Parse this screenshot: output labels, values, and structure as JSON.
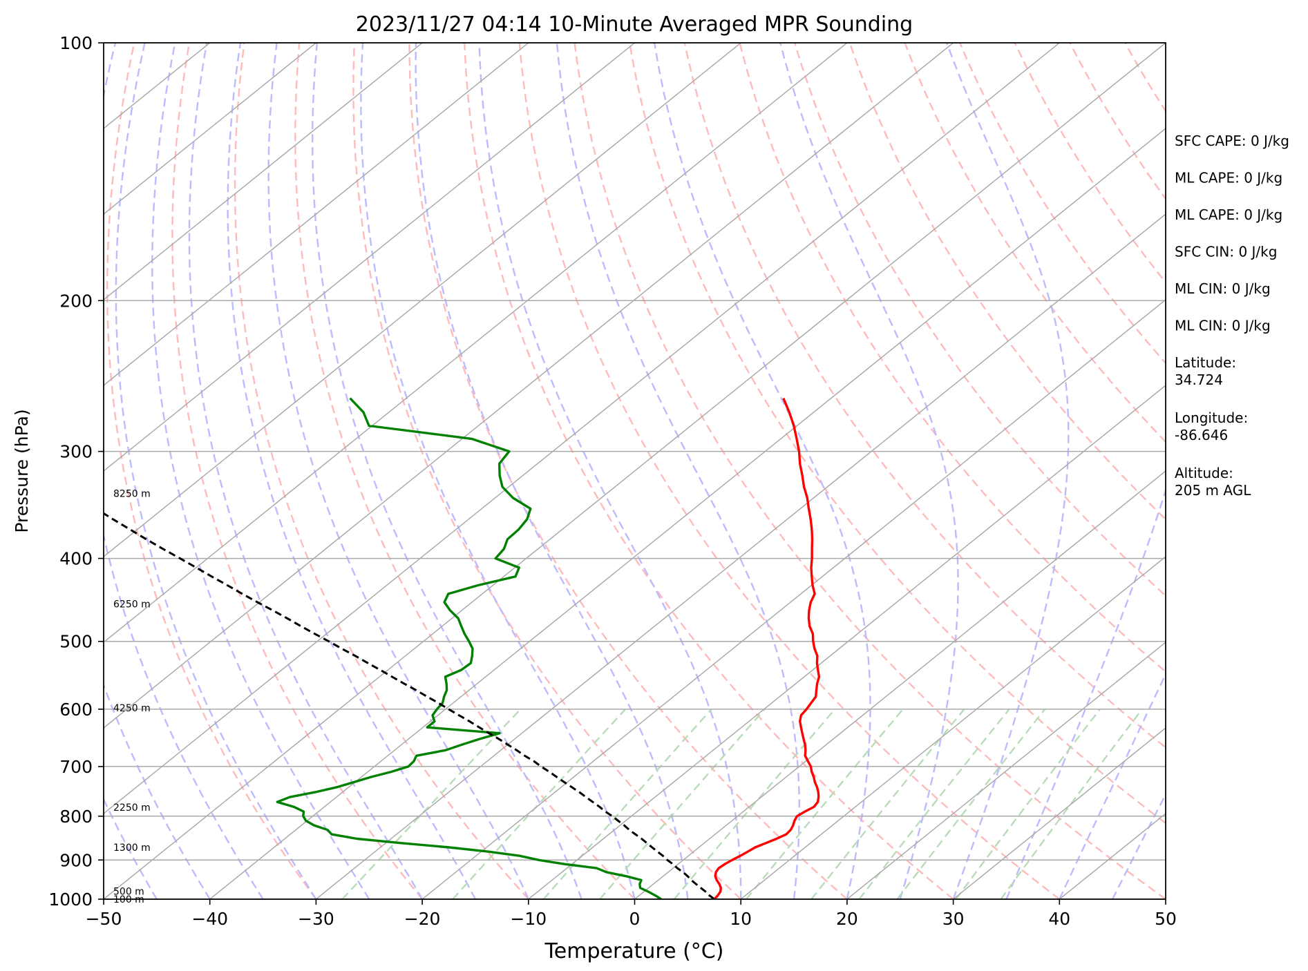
{
  "chart_data": {
    "type": "line",
    "subtype": "skew-T log-p sounding",
    "title": "2023/11/27 04:14 10-Minute Averaged MPR Sounding",
    "xlabel": "Temperature (°C)",
    "ylabel": "Pressure (hPa)",
    "xlim": [
      -50,
      50
    ],
    "ylim": [
      1000,
      100
    ],
    "y_scale": "log",
    "x_ticks": [
      -50,
      -40,
      -30,
      -20,
      -10,
      0,
      10,
      20,
      30,
      40,
      50
    ],
    "x_tick_labels": [
      "−50",
      "−40",
      "−30",
      "−20",
      "−10",
      "0",
      "10",
      "20",
      "30",
      "40",
      "50"
    ],
    "y_ticks": [
      1000,
      900,
      800,
      700,
      600,
      500,
      400,
      300,
      200,
      100
    ],
    "y_tick_labels": [
      "1000",
      "900",
      "800",
      "700",
      "600",
      "500",
      "400",
      "300",
      "200",
      "100"
    ],
    "grid": true,
    "colors": {
      "temperature": "#ff0000",
      "dewpoint": "#008000",
      "parcel": "#000000",
      "isotherm": "#aaaaaa",
      "dry_adiabat": "#ffbbbb",
      "moist_adiabat": "#bbbbff",
      "mixing_ratio": "#b8dcb8"
    },
    "series": [
      {
        "key": "temperature",
        "p": [
          1000,
          990,
          980,
          970,
          960,
          950,
          940,
          930,
          920,
          910,
          900,
          890,
          880,
          870,
          860,
          850,
          840,
          830,
          820,
          810,
          800,
          790,
          780,
          770,
          760,
          750,
          740,
          730,
          720,
          710,
          700,
          690,
          680,
          670,
          660,
          650,
          640,
          630,
          620,
          610,
          600,
          590,
          580,
          570,
          560,
          550,
          540,
          530,
          520,
          510,
          500,
          490,
          480,
          470,
          460,
          450,
          440,
          430,
          420,
          410,
          400,
          390,
          380,
          370,
          360,
          350,
          340,
          330,
          320,
          310,
          300,
          290,
          280,
          270,
          260
        ],
        "t": [
          7.5,
          7.4,
          7.2,
          6.8,
          6.2,
          5.5,
          4.9,
          4.5,
          4.3,
          4.4,
          4.6,
          4.9,
          5.1,
          5.3,
          5.8,
          6.3,
          6.7,
          6.6,
          6.3,
          5.9,
          5.6,
          5.8,
          6.1,
          5.9,
          5.4,
          4.8,
          4.1,
          3.3,
          2.6,
          1.8,
          1.1,
          0.2,
          -0.7,
          -1.3,
          -2.0,
          -2.8,
          -3.6,
          -4.4,
          -5.2,
          -5.8,
          -6.0,
          -6.3,
          -6.6,
          -7.3,
          -8.0,
          -8.6,
          -9.5,
          -10.4,
          -11.2,
          -12.3,
          -13.3,
          -14.2,
          -15.4,
          -16.4,
          -17.3,
          -18.1,
          -18.7,
          -19.9,
          -21.0,
          -22.1,
          -23.1,
          -24.2,
          -25.3,
          -26.5,
          -27.8,
          -29.2,
          -30.6,
          -32.2,
          -33.7,
          -35.3,
          -36.8,
          -38.5,
          -40.3,
          -42.3,
          -44.5
        ]
      },
      {
        "key": "dewpoint",
        "p": [
          1000,
          990,
          980,
          970,
          960,
          950,
          940,
          930,
          920,
          910,
          900,
          890,
          880,
          870,
          860,
          850,
          840,
          830,
          820,
          810,
          800,
          790,
          780,
          770,
          760,
          750,
          740,
          730,
          720,
          710,
          700,
          690,
          680,
          670,
          660,
          650,
          640,
          630,
          620,
          610,
          600,
          590,
          580,
          570,
          560,
          550,
          540,
          530,
          520,
          510,
          500,
          490,
          480,
          470,
          460,
          450,
          440,
          430,
          420,
          410,
          400,
          390,
          380,
          370,
          360,
          350,
          340,
          330,
          320,
          310,
          300,
          290,
          280,
          270,
          260
        ],
        "t": [
          2.5,
          1.5,
          0.4,
          -0.8,
          -1.3,
          -1.6,
          -3.5,
          -5.8,
          -7.2,
          -10.7,
          -13.6,
          -15.9,
          -19.3,
          -23.5,
          -28.5,
          -33.2,
          -36.1,
          -37.0,
          -38.8,
          -40.1,
          -40.9,
          -41.4,
          -42.9,
          -45.0,
          -44.4,
          -42.6,
          -41.1,
          -40.1,
          -39.1,
          -37.8,
          -36.8,
          -36.9,
          -37.3,
          -35.2,
          -34.3,
          -33.3,
          -32.1,
          -39.6,
          -39.6,
          -40.5,
          -40.8,
          -41.0,
          -41.6,
          -42.1,
          -42.9,
          -43.8,
          -43.1,
          -43.0,
          -43.7,
          -44.5,
          -45.7,
          -47.0,
          -48.2,
          -49.4,
          -51.1,
          -52.6,
          -53.2,
          -51.4,
          -48.9,
          -49.6,
          -52.9,
          -53.2,
          -54.0,
          -54.1,
          -54.5,
          -55.4,
          -58.3,
          -60.6,
          -62.2,
          -63.6,
          -64.1,
          -69.1,
          -80.3,
          -82.4,
          -85.3
        ]
      },
      {
        "key": "parcel",
        "p": [
          1000,
          990,
          980,
          970,
          960,
          950,
          940,
          930,
          920,
          910,
          900,
          890,
          880,
          870,
          860,
          850,
          840,
          830,
          820,
          810,
          800,
          790,
          780,
          770,
          760,
          750,
          740,
          730,
          720,
          710,
          700,
          690,
          680,
          670,
          660,
          650,
          640,
          630,
          620,
          610,
          600,
          590,
          580,
          570,
          560,
          550,
          540,
          530,
          520,
          510,
          500,
          490,
          480,
          470,
          460,
          450,
          440,
          430,
          420,
          410,
          400,
          390,
          380,
          370,
          360,
          350,
          340,
          330,
          320,
          310,
          300,
          290,
          280,
          270,
          260
        ],
        "t": [
          7.5,
          6.6,
          5.8,
          4.9,
          4.0,
          3.1,
          2.3,
          1.4,
          0.4,
          -0.5,
          -1.5,
          -2.4,
          -3.4,
          -4.4,
          -5.4,
          -6.4,
          -7.5,
          -8.6,
          -9.6,
          -10.7,
          -11.8,
          -13.0,
          -14.1,
          -15.3,
          -16.5,
          -17.7,
          -19.0,
          -20.3,
          -21.6,
          -22.9,
          -24.3,
          -25.6,
          -27.1,
          -28.5,
          -30.0,
          -31.5,
          -33.1,
          -34.7,
          -36.3,
          -38.0,
          -39.7,
          -41.4,
          -43.2,
          -45.0,
          -46.9,
          -48.8,
          -50.7,
          -52.7,
          -54.7,
          -56.8,
          -58.9,
          -61.1,
          -63.3,
          -65.5,
          -67.8,
          -70.2,
          -72.6,
          -75.0,
          -77.5,
          -80.0,
          -82.6,
          -85.3,
          -88.0,
          -90.7,
          -93.5,
          -96.3,
          -99.2,
          -102.1,
          -105.1,
          -108.1,
          -111.1,
          -114.2,
          -117.3,
          -120.4,
          -123.6
        ]
      }
    ],
    "height_labels": [
      {
        "p": 1000,
        "text": "100 m"
      },
      {
        "p": 979,
        "text": "500 m"
      },
      {
        "p": 870,
        "text": "1300 m"
      },
      {
        "p": 781,
        "text": "2250 m"
      },
      {
        "p": 598,
        "text": "4250 m"
      },
      {
        "p": 452,
        "text": "6250 m"
      },
      {
        "p": 336,
        "text": "8250 m"
      }
    ],
    "annotations": [
      "SFC CAPE: 0 J/kg",
      "ML CAPE: 0 J/kg",
      "ML CAPE: 0 J/kg",
      "SFC CIN: 0 J/kg",
      "ML CIN: 0 J/kg",
      "ML CIN: 0 J/kg",
      "Latitude:\n34.724",
      "Longitude:\n-86.646",
      "Altitude:\n205 m AGL"
    ]
  }
}
